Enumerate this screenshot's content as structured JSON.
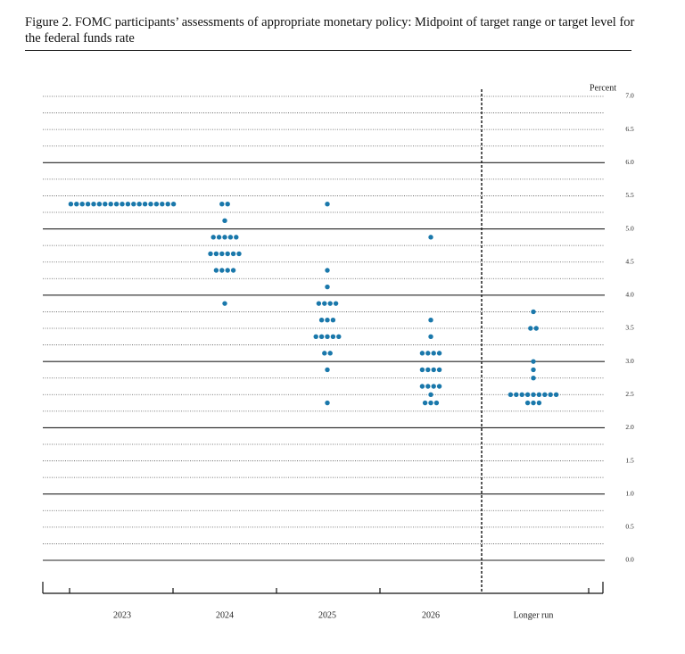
{
  "chart_data": {
    "type": "dot",
    "title": "Figure 2. FOMC participants’ assessments of appropriate monetary policy: Midpoint of target range or target level for the federal funds rate",
    "y_label": "Percent",
    "categories": [
      "2023",
      "2024",
      "2025",
      "2026",
      "Longer run"
    ],
    "color": "#1a78ab",
    "values": [
      [
        5.375,
        5.375,
        5.375,
        5.375,
        5.375,
        5.375,
        5.375,
        5.375,
        5.375,
        5.375,
        5.375,
        5.375,
        5.375,
        5.375,
        5.375,
        5.375,
        5.375,
        5.375,
        5.375
      ],
      [
        5.375,
        5.375,
        5.125,
        4.875,
        4.875,
        4.875,
        4.875,
        4.875,
        4.625,
        4.625,
        4.625,
        4.625,
        4.625,
        4.625,
        4.375,
        4.375,
        4.375,
        4.375,
        3.875
      ],
      [
        5.375,
        4.375,
        4.125,
        3.875,
        3.875,
        3.875,
        3.875,
        3.625,
        3.625,
        3.625,
        3.375,
        3.375,
        3.375,
        3.375,
        3.375,
        3.125,
        3.125,
        2.875,
        2.375
      ],
      [
        4.875,
        3.625,
        3.375,
        3.125,
        3.125,
        3.125,
        3.125,
        2.875,
        2.875,
        2.875,
        2.875,
        2.625,
        2.625,
        2.625,
        2.625,
        2.5,
        2.375,
        2.375,
        2.375
      ],
      [
        3.75,
        3.5,
        3.5,
        3.0,
        2.875,
        2.75,
        2.5,
        2.5,
        2.5,
        2.5,
        2.5,
        2.5,
        2.5,
        2.5,
        2.5,
        2.375,
        2.375,
        2.375
      ]
    ],
    "ylim": [
      0,
      7
    ],
    "yticks": [
      {
        "value": 0,
        "label": "0.0"
      },
      0.5,
      {
        "value": 1,
        "label": "1.0"
      },
      1.5,
      {
        "value": 2,
        "label": "2.0"
      },
      2.5,
      {
        "value": 3,
        "label": "3.0"
      },
      3.5,
      {
        "value": 4,
        "label": "4.0"
      },
      4.5,
      {
        "value": 5,
        "label": "5.0"
      },
      5.5,
      {
        "value": 6,
        "label": "6.0"
      },
      6.5,
      {
        "value": 7,
        "label": "7.0"
      }
    ],
    "minor_yticks": [
      0.25,
      0.75,
      1.25,
      1.75,
      2.25,
      2.75,
      3.25,
      3.75,
      4.25,
      4.75,
      5.25,
      5.75,
      6.25,
      6.75
    ]
  }
}
